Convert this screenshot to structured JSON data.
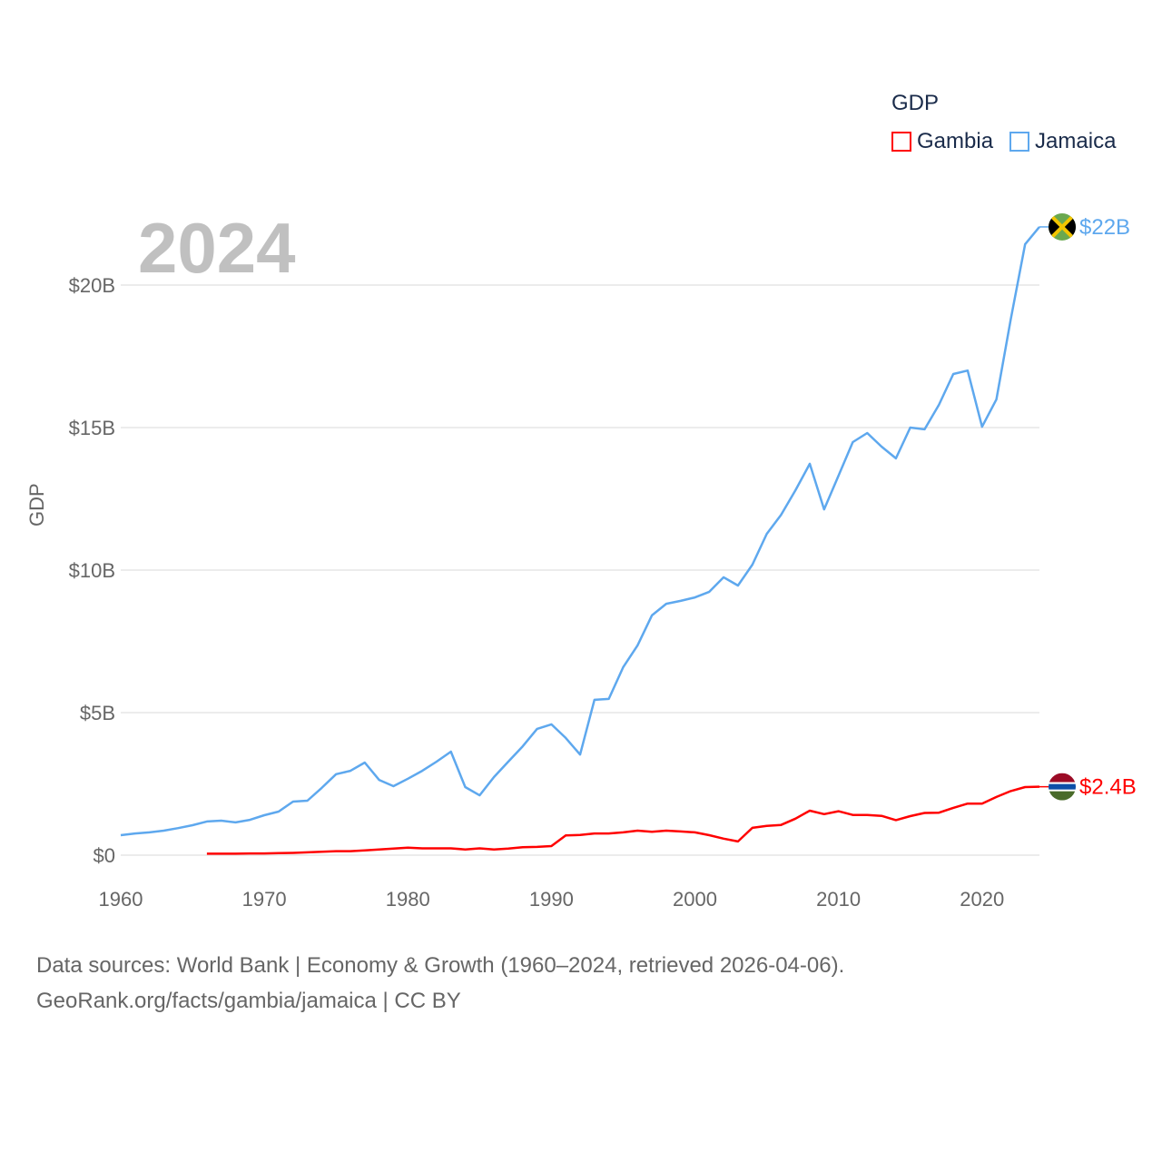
{
  "chart_data": {
    "type": "line",
    "title": "GDP",
    "ylabel": "GDP",
    "xlabel": "",
    "current_year_label": "2024",
    "xlim": [
      1960,
      2024
    ],
    "ylim": [
      0,
      22
    ],
    "x_ticks": [
      "1960",
      "1970",
      "1980",
      "1990",
      "2000",
      "2010",
      "2020"
    ],
    "y_ticks": [
      {
        "value": 0,
        "label": "$0"
      },
      {
        "value": 5,
        "label": "$5B"
      },
      {
        "value": 10,
        "label": "$10B"
      },
      {
        "value": 15,
        "label": "$15B"
      },
      {
        "value": 20,
        "label": "$20B"
      }
    ],
    "grid": true,
    "legend_position": "top-right",
    "units": "billion USD",
    "series": [
      {
        "name": "Gambia",
        "color": "#ff0000",
        "end_label": "$2.4B",
        "start_year": 1966,
        "values": [
          0.05,
          0.05,
          0.05,
          0.06,
          0.06,
          0.07,
          0.08,
          0.1,
          0.12,
          0.14,
          0.14,
          0.17,
          0.2,
          0.23,
          0.26,
          0.24,
          0.24,
          0.24,
          0.2,
          0.24,
          0.2,
          0.23,
          0.28,
          0.29,
          0.32,
          0.69,
          0.71,
          0.76,
          0.76,
          0.8,
          0.86,
          0.82,
          0.86,
          0.83,
          0.8,
          0.7,
          0.58,
          0.48,
          0.96,
          1.03,
          1.06,
          1.28,
          1.56,
          1.44,
          1.54,
          1.41,
          1.41,
          1.38,
          1.23,
          1.37,
          1.48,
          1.49,
          1.66,
          1.81,
          1.81,
          2.04,
          2.25,
          2.39,
          2.4
        ]
      },
      {
        "name": "Jamaica",
        "color": "#5ea8ee",
        "end_label": "$22B",
        "start_year": 1960,
        "values": [
          0.7,
          0.76,
          0.8,
          0.86,
          0.95,
          1.05,
          1.18,
          1.21,
          1.15,
          1.24,
          1.4,
          1.53,
          1.88,
          1.91,
          2.36,
          2.84,
          2.96,
          3.25,
          2.64,
          2.42,
          2.68,
          2.96,
          3.28,
          3.63,
          2.39,
          2.1,
          2.74,
          3.28,
          3.82,
          4.43,
          4.59,
          4.11,
          3.53,
          5.45,
          5.48,
          6.59,
          7.36,
          8.41,
          8.82,
          8.92,
          9.04,
          9.24,
          9.75,
          9.46,
          10.19,
          11.27,
          11.94,
          12.8,
          13.73,
          12.13,
          13.31,
          14.49,
          14.81,
          14.33,
          13.92,
          15.0,
          14.94,
          15.8,
          16.88,
          17.0,
          15.03,
          15.99,
          18.8,
          21.43,
          22.04
        ]
      }
    ]
  },
  "footer": {
    "line1": "Data sources: World Bank | Economy & Growth (1960–2024, retrieved 2026-04-06).",
    "line2": "GeoRank.org/facts/gambia/jamaica | CC BY"
  }
}
